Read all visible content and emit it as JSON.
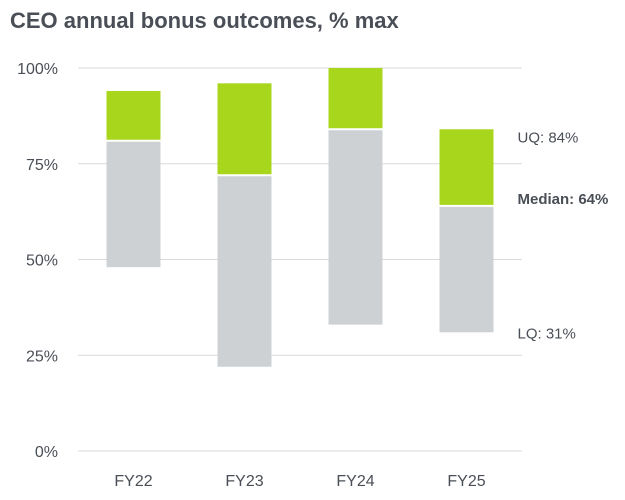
{
  "chart_data": {
    "type": "bar",
    "title": "CEO annual bonus outcomes, % max",
    "xlabel": "",
    "ylabel": "",
    "ylim": [
      0,
      100
    ],
    "yticks": [
      0,
      25,
      50,
      75,
      100
    ],
    "ytick_labels": [
      "0%",
      "25%",
      "50%",
      "75%",
      "100%"
    ],
    "categories": [
      "FY22",
      "FY23",
      "FY24",
      "FY25"
    ],
    "series": [
      {
        "name": "Lower quartile",
        "values": [
          48,
          22,
          33,
          31
        ]
      },
      {
        "name": "Median",
        "values": [
          81,
          72,
          84,
          64
        ]
      },
      {
        "name": "Upper quartile",
        "values": [
          94,
          96,
          100,
          84
        ]
      }
    ],
    "annotations": [
      {
        "key": "uq",
        "text": "UQ: 84%"
      },
      {
        "key": "median",
        "text": "Median: 64%"
      },
      {
        "key": "lq",
        "text": "LQ: 31%"
      }
    ],
    "colors": {
      "lower_band": "#cdd1d4",
      "upper_band": "#a8d61c",
      "grid": "#d9d9d9"
    },
    "grid": true
  }
}
